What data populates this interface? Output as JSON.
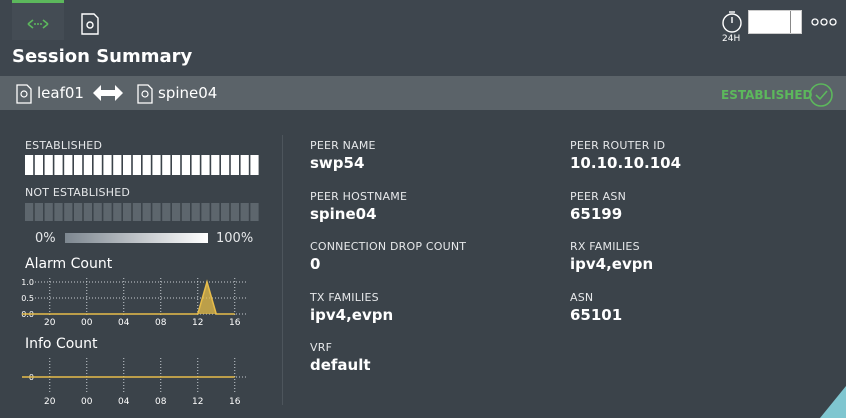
{
  "header": {
    "title": "Session Summary",
    "time_range": "24H"
  },
  "session": {
    "source": "leaf01",
    "target": "spine04",
    "status": "ESTABLISHED"
  },
  "status_chart": {
    "established_label": "ESTABLISHED",
    "not_established_label": "NOT ESTABLISHED",
    "scale_min": "0%",
    "scale_max": "100%"
  },
  "alarm_chart": {
    "title": "Alarm Count",
    "categories": [
      null,
      null,
      null,
      "20",
      null,
      null,
      null,
      "00",
      null,
      null,
      null,
      "04",
      null,
      null,
      null,
      "08",
      null,
      null,
      null,
      "12",
      null,
      null,
      null,
      "16"
    ],
    "values": [
      0,
      0,
      0,
      0,
      0,
      0,
      0,
      0,
      0,
      0,
      0,
      0,
      0,
      0,
      0,
      0,
      0,
      0,
      0,
      0,
      1,
      0,
      0,
      0
    ],
    "ylim": [
      0,
      1
    ],
    "yticks": [
      {
        "value": 0,
        "label": "0.0"
      },
      {
        "value": 0.5,
        "label": "0.5"
      },
      {
        "value": 1,
        "label": "1.0"
      }
    ]
  },
  "info_chart": {
    "title": "Info Count",
    "categories": [
      null,
      null,
      null,
      "20",
      null,
      null,
      null,
      "00",
      null,
      null,
      null,
      "04",
      null,
      null,
      null,
      "08",
      null,
      null,
      null,
      "12",
      null,
      null,
      null,
      "16"
    ],
    "values": [
      0,
      0,
      0,
      0,
      0,
      0,
      0,
      0,
      0,
      0,
      0,
      0,
      0,
      0,
      0,
      0,
      0,
      0,
      0,
      0,
      0,
      0,
      0,
      0
    ],
    "ylim": [
      -1,
      1
    ],
    "yticks": [
      0
    ]
  },
  "details": [
    {
      "label": "PEER NAME",
      "value": "swp54"
    },
    {
      "label": "PEER HOSTNAME",
      "value": "spine04"
    },
    {
      "label": "CONNECTION DROP COUNT",
      "value": "0"
    },
    {
      "label": "TX FAMILIES",
      "value": "ipv4,evpn"
    },
    {
      "label": "VRF",
      "value": "default"
    },
    {
      "label": "PEER ROUTER ID",
      "value": "10.10.10.104"
    },
    {
      "label": "PEER ASN",
      "value": "65199"
    },
    {
      "label": "RX FAMILIES",
      "value": "ipv4,evpn"
    },
    {
      "label": "ASN",
      "value": "65101"
    }
  ]
}
